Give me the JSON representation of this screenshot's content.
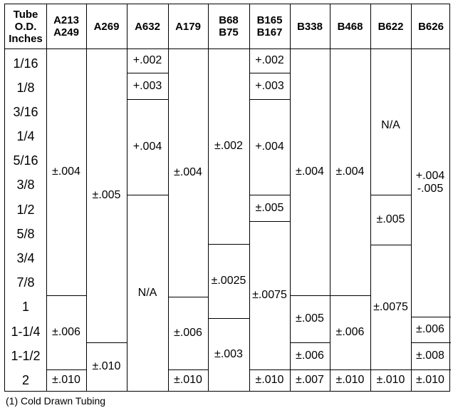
{
  "headers": [
    "Tube\nO.D.\nInches",
    "A213\nA249",
    "A269",
    "A632",
    "A179",
    "B68\nB75",
    "B165\nB167",
    "B338",
    "B468",
    "B622",
    "B626"
  ],
  "sizes": [
    "1/16",
    "1/8",
    "3/16",
    "1/4",
    "5/16",
    "3/8",
    "1/2",
    "5/8",
    "3/4",
    "7/8",
    "1",
    "1-1/4",
    "1-1/2",
    "2"
  ],
  "cells": {
    "A213_A249": [
      "±.004",
      "±.006",
      "±.010"
    ],
    "A269": [
      "±.005",
      "±.010"
    ],
    "A632": [
      "+.002",
      "+.003",
      "+.004",
      "N/A"
    ],
    "A179": [
      "±.004",
      "±.006",
      "±.010"
    ],
    "B68_B75": [
      "±.002",
      "±.0025",
      "±.003"
    ],
    "B165_B167": [
      "+.002",
      "+.003",
      "+.004",
      "±.005",
      "±.0075",
      "±.010"
    ],
    "B338": [
      "±.004",
      "±.005",
      "±.006",
      "±.007"
    ],
    "B468": [
      "±.004",
      "±.006",
      "±.010"
    ],
    "B622": [
      "N/A",
      "±.005",
      "±.0075",
      "±.010"
    ],
    "B626": [
      "+.004\n-.005",
      "±.006",
      "±.008",
      "±.010"
    ]
  },
  "footnote": "(1) Cold Drawn Tubing"
}
